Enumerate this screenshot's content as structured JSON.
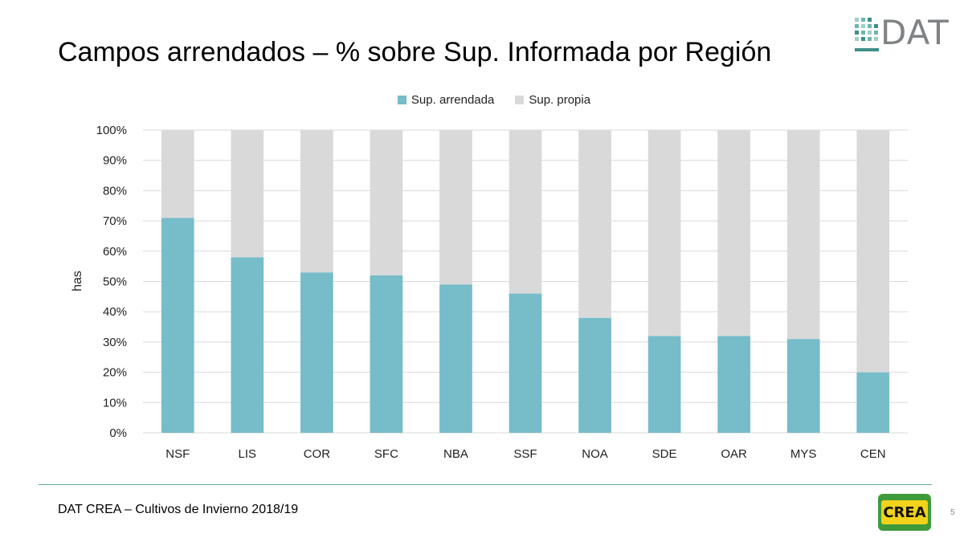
{
  "title": "Campos arrendados – % sobre Sup. Informada por Región",
  "logo": {
    "word": "DAT"
  },
  "footer": {
    "text": "DAT CREA – Cultivos de Invierno 2018/19",
    "page_number": "5",
    "crea_logo": "CREA"
  },
  "colors": {
    "arrendada": "#76bcc9",
    "propia": "#d9d9d9",
    "grid": "#d9d9d9",
    "accent": "#3f8f8a"
  },
  "chart_data": {
    "type": "bar",
    "stacked": true,
    "categories": [
      "NSF",
      "LIS",
      "COR",
      "SFC",
      "NBA",
      "SSF",
      "NOA",
      "SDE",
      "OAR",
      "MYS",
      "CEN"
    ],
    "series": [
      {
        "name": "Sup. arrendada",
        "values": [
          71,
          58,
          53,
          52,
          49,
          46,
          38,
          32,
          32,
          31,
          20
        ]
      },
      {
        "name": "Sup. propia",
        "values": [
          29,
          42,
          47,
          48,
          51,
          54,
          62,
          68,
          68,
          69,
          80
        ]
      }
    ],
    "ylabel": "has",
    "xlabel": "",
    "ylim": [
      0,
      100
    ],
    "yticks": [
      "0%",
      "10%",
      "20%",
      "30%",
      "40%",
      "50%",
      "60%",
      "70%",
      "80%",
      "90%",
      "100%"
    ],
    "grid": true,
    "legend": "top-center"
  }
}
